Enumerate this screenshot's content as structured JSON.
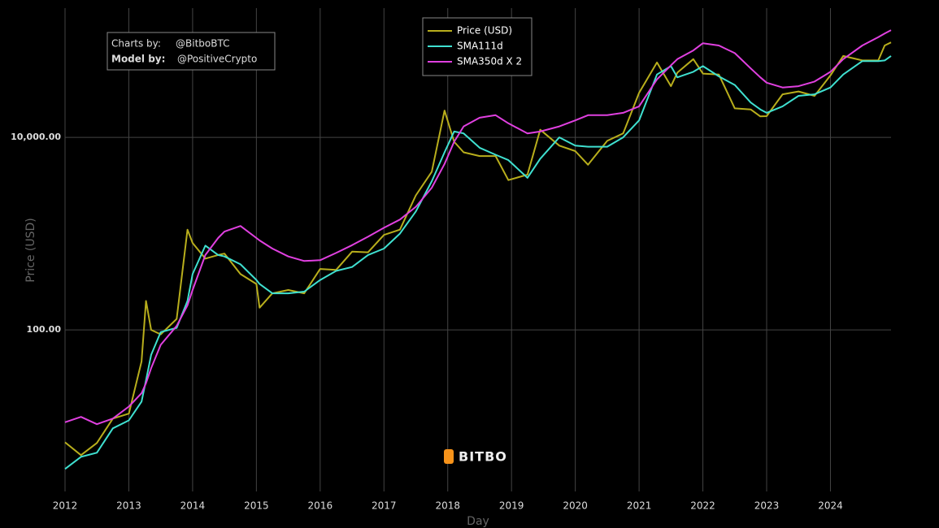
{
  "chart_data": {
    "type": "line",
    "credits": [
      {
        "label": "Charts by:",
        "value": "@BitboBTC"
      },
      {
        "label": "Model by:",
        "value": "@PositiveCrypto"
      }
    ],
    "watermark": "BITBO",
    "x_label": "Day",
    "y_label": "Price (USD)",
    "ylog": true,
    "grid": true,
    "legend": "top",
    "xlim": [
      2012,
      2024.95
    ],
    "xticks": [
      2012,
      2013,
      2014,
      2015,
      2016,
      2017,
      2018,
      2019,
      2020,
      2021,
      2022,
      2023,
      2024
    ],
    "ylim": [
      2.1,
      220000
    ],
    "yticks": [
      {
        "value": 100,
        "label": "100.00"
      },
      {
        "value": 10000,
        "label": "10,000.00"
      }
    ],
    "x": [
      2012.0,
      2012.25,
      2012.5,
      2012.75,
      2013.0,
      2013.2,
      2013.27,
      2013.35,
      2013.5,
      2013.75,
      2013.92,
      2014.0,
      2014.2,
      2014.4,
      2014.5,
      2014.75,
      2015.0,
      2015.05,
      2015.25,
      2015.5,
      2015.75,
      2016.0,
      2016.25,
      2016.5,
      2016.75,
      2017.0,
      2017.25,
      2017.5,
      2017.75,
      2017.95,
      2018.1,
      2018.25,
      2018.5,
      2018.75,
      2018.95,
      2019.25,
      2019.45,
      2019.75,
      2020.0,
      2020.2,
      2020.5,
      2020.75,
      2021.0,
      2021.28,
      2021.5,
      2021.6,
      2021.85,
      2022.0,
      2022.25,
      2022.5,
      2022.75,
      2022.9,
      2023.0,
      2023.25,
      2023.5,
      2023.75,
      2024.0,
      2024.2,
      2024.5,
      2024.75,
      2024.85,
      2024.95
    ],
    "series": [
      {
        "name": "Price (USD)",
        "color": "#b8ae1c",
        "values": [
          6.8,
          5,
          6.7,
          12,
          13.5,
          47,
          200,
          100,
          90,
          130,
          1100,
          800,
          550,
          600,
          620,
          380,
          300,
          170,
          240,
          260,
          240,
          430,
          420,
          650,
          640,
          970,
          1100,
          2500,
          4400,
          19000,
          9000,
          7000,
          6400,
          6400,
          3600,
          4100,
          12000,
          8200,
          7200,
          5200,
          9200,
          11000,
          29000,
          60000,
          34000,
          47000,
          65000,
          46000,
          45000,
          20000,
          19500,
          16500,
          16600,
          28000,
          30000,
          27000,
          44000,
          70000,
          63000,
          63000,
          90000,
          97000
        ]
      },
      {
        "name": "SMA111d",
        "color": "#3fe0d0",
        "values": [
          3.6,
          4.8,
          5.3,
          9.5,
          11.5,
          18,
          30,
          55,
          95,
          105,
          200,
          380,
          750,
          600,
          580,
          480,
          330,
          300,
          240,
          240,
          250,
          330,
          410,
          450,
          600,
          700,
          1000,
          1700,
          3500,
          7000,
          11500,
          11000,
          7800,
          6600,
          5800,
          3800,
          6000,
          10000,
          8200,
          8000,
          8000,
          10000,
          15000,
          45000,
          55000,
          42000,
          48000,
          55000,
          43000,
          35000,
          23000,
          19500,
          18000,
          21000,
          27000,
          28000,
          33000,
          45000,
          62000,
          62000,
          63000,
          70000
        ]
      },
      {
        "name": "SMA350d X 2",
        "color": "#e040e0",
        "values": [
          11,
          12.5,
          10.5,
          12,
          16,
          22,
          28,
          40,
          70,
          110,
          180,
          260,
          600,
          900,
          1050,
          1200,
          900,
          850,
          700,
          580,
          520,
          530,
          630,
          760,
          930,
          1150,
          1400,
          1900,
          3000,
          5300,
          9000,
          13000,
          16000,
          17000,
          14000,
          11000,
          11500,
          13000,
          15000,
          17000,
          17000,
          18000,
          21000,
          40000,
          56000,
          65000,
          80000,
          95000,
          90000,
          75000,
          52000,
          42000,
          37000,
          33000,
          34000,
          38000,
          48000,
          65000,
          90000,
          110000,
          120000,
          130000
        ]
      }
    ]
  }
}
